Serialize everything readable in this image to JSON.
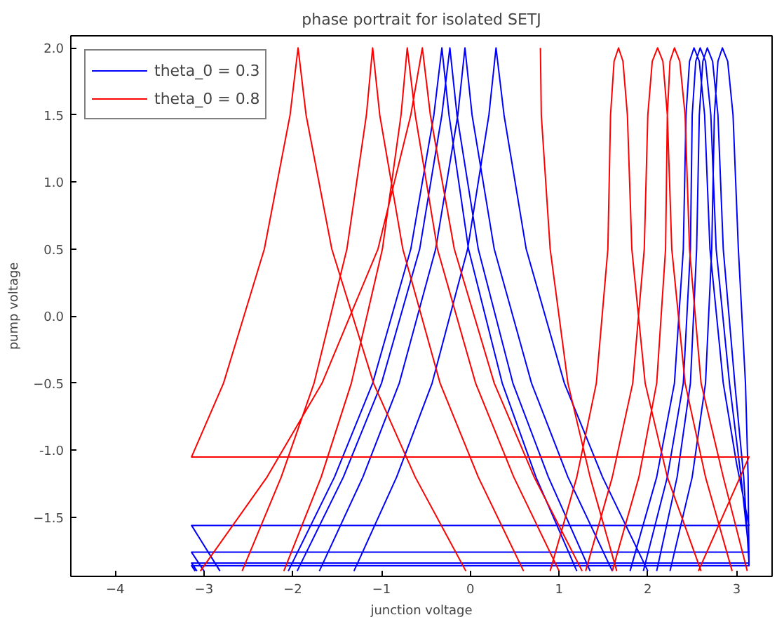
{
  "chart_data": {
    "type": "line",
    "title": "phase portrait for isolated SETJ",
    "xlabel": "junction voltage",
    "ylabel": "pump voltage",
    "xlim": [
      -4.5,
      3.4
    ],
    "ylim": [
      -1.94,
      2.09
    ],
    "xticks": [
      -4,
      -3,
      -2,
      -1,
      0,
      1,
      2,
      3
    ],
    "yticks": [
      -1.5,
      {
        "value": -1.0,
        "label": "-1.0"
      },
      -0.5,
      {
        "value": 0.0,
        "label": "0.0"
      },
      0.5,
      {
        "value": 1.0,
        "label": "1.0"
      },
      1.5,
      {
        "value": 2.0,
        "label": "2.0"
      }
    ],
    "grid": false,
    "legend": "top left",
    "line_style": "solid",
    "marker": "none",
    "series": [
      {
        "name": "theta_0 = 0.3",
        "color": "#0000ff",
        "x": [
          -2.05,
          -1.53,
          -1.1,
          -0.67,
          -0.41,
          -0.32,
          -0.24,
          -0.02,
          0.36,
          0.74,
          1.2,
          null,
          -1.95,
          -1.43,
          -1.0,
          -0.57,
          -0.32,
          -0.23,
          -0.15,
          0.09,
          0.48,
          0.88,
          1.35,
          null,
          -1.7,
          -1.21,
          -0.8,
          -0.39,
          -0.14,
          -0.06,
          0.02,
          0.27,
          0.69,
          1.1,
          1.6,
          null,
          -1.31,
          -0.83,
          -0.43,
          -0.03,
          0.21,
          0.29,
          0.38,
          0.63,
          1.06,
          1.49,
          2.0,
          null,
          1.8,
          2.1,
          2.3,
          2.4,
          2.43,
          2.47,
          2.52,
          2.58,
          2.64,
          2.7,
          2.85,
          3.0,
          3.14,
          -3.14,
          -2.82,
          null,
          1.95,
          2.22,
          2.4,
          2.48,
          2.5,
          2.54,
          2.59,
          2.65,
          2.71,
          2.77,
          2.92,
          3.05,
          3.14,
          -3.14,
          -3.0,
          null,
          2.1,
          2.33,
          2.48,
          2.55,
          2.58,
          2.62,
          2.67,
          2.73,
          2.79,
          2.85,
          2.98,
          3.08,
          3.14,
          -3.14,
          -3.08,
          null,
          2.25,
          2.5,
          2.65,
          2.72,
          2.75,
          2.79,
          2.84,
          2.9,
          2.96,
          3.02,
          3.1,
          3.13,
          3.14,
          -3.14,
          -3.1
        ],
        "values": [
          -1.9,
          -1.2,
          -0.5,
          0.5,
          1.5,
          2.0,
          1.5,
          0.5,
          -0.5,
          -1.2,
          -1.9,
          null,
          -1.9,
          -1.2,
          -0.5,
          0.5,
          1.5,
          2.0,
          1.5,
          0.5,
          -0.5,
          -1.2,
          -1.9,
          null,
          -1.9,
          -1.2,
          -0.5,
          0.5,
          1.5,
          2.0,
          1.5,
          0.5,
          -0.5,
          -1.2,
          -1.9,
          null,
          -1.9,
          -1.2,
          -0.5,
          0.5,
          1.5,
          2.0,
          1.5,
          0.5,
          -0.5,
          -1.2,
          -1.9,
          null,
          -1.9,
          -1.2,
          -0.5,
          0.5,
          1.5,
          1.9,
          2.0,
          1.9,
          1.5,
          0.5,
          -0.5,
          -1.1,
          -1.56,
          -1.56,
          -1.9,
          null,
          -1.9,
          -1.2,
          -0.5,
          0.5,
          1.5,
          1.9,
          2.0,
          1.9,
          1.5,
          0.5,
          -0.5,
          -1.2,
          -1.76,
          -1.76,
          -1.9,
          null,
          -1.9,
          -1.2,
          -0.5,
          0.5,
          1.5,
          1.9,
          2.0,
          1.9,
          1.5,
          0.5,
          -0.5,
          -1.2,
          -1.84,
          -1.84,
          -1.9,
          null,
          -1.9,
          -1.2,
          -0.5,
          0.5,
          1.5,
          1.9,
          2.0,
          1.9,
          1.5,
          0.5,
          -0.5,
          -1.2,
          -1.86,
          -1.86,
          -1.9
        ]
      },
      {
        "name": "theta_0 = 0.8",
        "color": "#ff0000",
        "x": [
          2.57,
          3.14,
          -3.14,
          -2.78,
          -2.32,
          -2.03,
          -1.94,
          -1.85,
          -1.56,
          -1.09,
          -0.62,
          -0.05,
          null,
          -2.57,
          -2.13,
          -1.76,
          -1.39,
          -1.17,
          -1.1,
          -1.02,
          -0.76,
          -0.34,
          0.09,
          0.6,
          null,
          -2.1,
          -1.68,
          -1.34,
          -0.99,
          -0.78,
          -0.71,
          -0.62,
          -0.37,
          0.06,
          0.49,
          1.0,
          null,
          -3.04,
          -2.29,
          -1.67,
          -1.04,
          -0.67,
          -0.54,
          -0.45,
          -0.18,
          0.27,
          0.72,
          1.26,
          null,
          0.79,
          0.8,
          0.9,
          1.1,
          1.35,
          1.65,
          null,
          0.9,
          1.2,
          1.42,
          1.55,
          1.58,
          1.62,
          1.67,
          1.72,
          1.77,
          1.82,
          1.97,
          2.22,
          2.6,
          null,
          1.3,
          1.6,
          1.83,
          1.96,
          2.0,
          2.05,
          2.11,
          2.17,
          2.22,
          2.27,
          2.42,
          2.65,
          2.95,
          null,
          1.6,
          1.9,
          2.1,
          2.2,
          2.22,
          2.25,
          2.3,
          2.36,
          2.42,
          2.47,
          2.6,
          2.85,
          3.12
        ],
        "values": [
          -1.9,
          -1.05,
          -1.05,
          -0.5,
          0.5,
          1.5,
          2.0,
          1.5,
          0.5,
          -0.5,
          -1.2,
          -1.9,
          null,
          -1.9,
          -1.2,
          -0.5,
          0.5,
          1.5,
          2.0,
          1.5,
          0.5,
          -0.5,
          -1.2,
          -1.9,
          null,
          -1.9,
          -1.2,
          -0.5,
          0.5,
          1.5,
          2.0,
          1.5,
          0.5,
          -0.5,
          -1.2,
          -1.9,
          null,
          -1.9,
          -1.2,
          -0.5,
          0.5,
          1.5,
          2.0,
          1.5,
          0.5,
          -0.5,
          -1.2,
          -1.9,
          null,
          2.0,
          1.5,
          0.5,
          -0.5,
          -1.2,
          -1.9,
          null,
          -1.9,
          -1.2,
          -0.5,
          0.5,
          1.5,
          1.9,
          2.0,
          1.9,
          1.5,
          0.5,
          -0.5,
          -1.2,
          -1.9,
          null,
          -1.9,
          -1.2,
          -0.5,
          0.5,
          1.5,
          1.9,
          2.0,
          1.9,
          1.5,
          0.5,
          -0.5,
          -1.2,
          -1.9,
          null,
          -1.9,
          -1.2,
          -0.5,
          0.5,
          1.5,
          1.9,
          2.0,
          1.9,
          1.5,
          0.5,
          -0.5,
          -1.2,
          -1.9
        ]
      }
    ]
  }
}
